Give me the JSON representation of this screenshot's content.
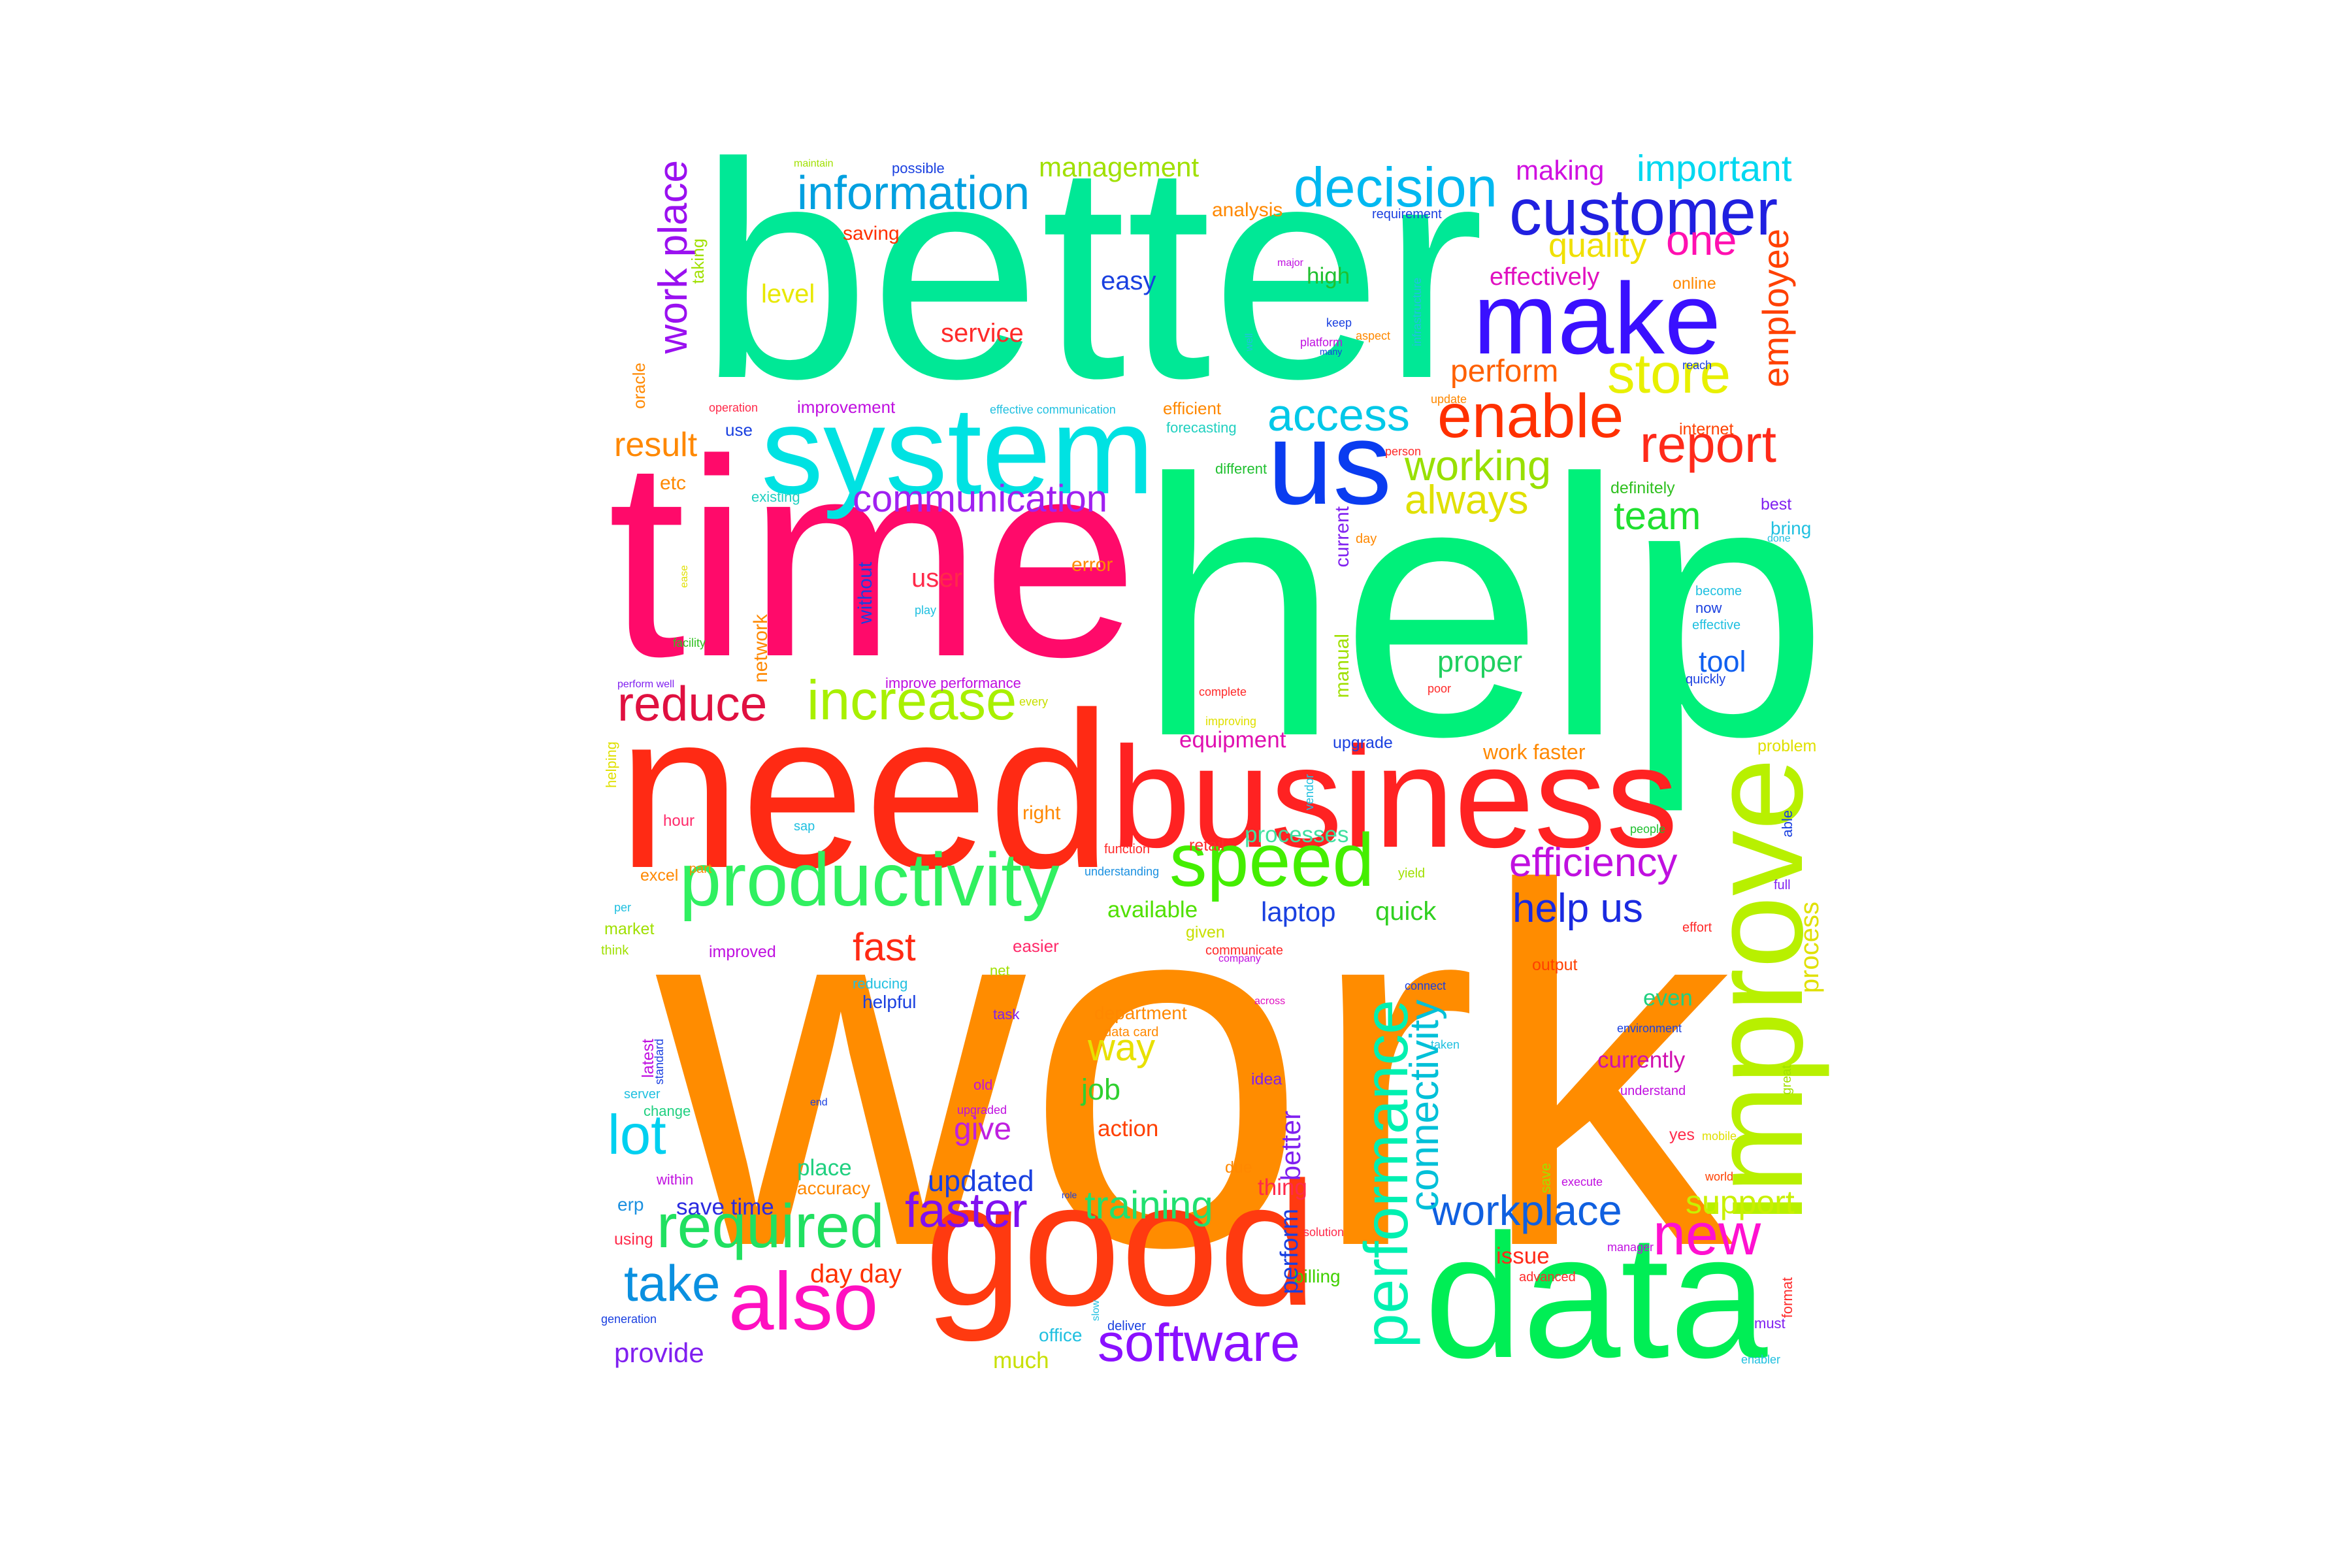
{
  "word_cloud": {
    "colors": {
      "work": "#ff8c00",
      "help": "#00f07a",
      "better": "#00e896",
      "time": "#ff0a6a",
      "need": "#ff2a14",
      "business": "#ff2222",
      "data": "#00ee55",
      "good": "#ff3a10",
      "improve": "#b8f000",
      "system": "#00e2e2",
      "make": "#3a10ff",
      "us": "#0a3cf0",
      "customer": "#2020e0",
      "productivity": "#30f060",
      "speed": "#44ee00",
      "also": "#ff10c0"
    },
    "words": [
      {
        "text": "work",
        "color": "#ff8c00"
      },
      {
        "text": "help",
        "color": "#00f07a"
      },
      {
        "text": "better",
        "color": "#00e896"
      },
      {
        "text": "time",
        "color": "#ff0a6a"
      },
      {
        "text": "need",
        "color": "#ff2a14"
      },
      {
        "text": "business",
        "color": "#ff2222"
      },
      {
        "text": "data",
        "color": "#00ee55"
      },
      {
        "text": "good",
        "color": "#ff3a10"
      },
      {
        "text": "improve",
        "color": "#b8f000"
      },
      {
        "text": "system",
        "color": "#00e2e2"
      },
      {
        "text": "make",
        "color": "#3a10ff"
      },
      {
        "text": "us",
        "color": "#0a3cf0"
      },
      {
        "text": "customer",
        "color": "#2020e0"
      },
      {
        "text": "productivity",
        "color": "#30f060"
      },
      {
        "text": "speed",
        "color": "#44ee00"
      },
      {
        "text": "also",
        "color": "#ff10c0"
      },
      {
        "text": "decision",
        "color": "#00b8f0"
      },
      {
        "text": "information",
        "color": "#00a0e0"
      },
      {
        "text": "enable",
        "color": "#ff3000"
      },
      {
        "text": "report",
        "color": "#ff2a1a"
      },
      {
        "text": "store",
        "color": "#e8f000"
      },
      {
        "text": "increase",
        "color": "#a8f000"
      },
      {
        "text": "reduce",
        "color": "#e01040"
      },
      {
        "text": "performance",
        "color": "#00f0b0"
      },
      {
        "text": "required",
        "color": "#20e060"
      },
      {
        "text": "new",
        "color": "#ff10d0"
      },
      {
        "text": "software",
        "color": "#8a10ff"
      },
      {
        "text": "communication",
        "color": "#a020f0"
      },
      {
        "text": "access",
        "color": "#00c8e8"
      },
      {
        "text": "working",
        "color": "#98e000"
      },
      {
        "text": "always",
        "color": "#e0e000"
      },
      {
        "text": "efficiency",
        "color": "#c010e0"
      },
      {
        "text": "help us",
        "color": "#1a2ae0"
      },
      {
        "text": "workplace",
        "color": "#1060e0"
      },
      {
        "text": "take",
        "color": "#0a90e0"
      },
      {
        "text": "lot",
        "color": "#00d0f0"
      },
      {
        "text": "faster",
        "color": "#8010f0"
      },
      {
        "text": "fast",
        "color": "#ff2a14"
      },
      {
        "text": "important",
        "color": "#00d8f0"
      },
      {
        "text": "one",
        "color": "#ff10b0"
      },
      {
        "text": "team",
        "color": "#20e030"
      },
      {
        "text": "work place",
        "color": "#9a10f0"
      },
      {
        "text": "employee",
        "color": "#ff4000"
      },
      {
        "text": "training",
        "color": "#20e070"
      },
      {
        "text": "connectivity",
        "color": "#00c0d8"
      },
      {
        "text": "support",
        "color": "#c8f000"
      },
      {
        "text": "management",
        "color": "#a0e000"
      },
      {
        "text": "making",
        "color": "#d010e0"
      },
      {
        "text": "quality",
        "color": "#f0e000"
      },
      {
        "text": "perform",
        "color": "#ff6000"
      },
      {
        "text": "effectively",
        "color": "#e010c0"
      },
      {
        "text": "result",
        "color": "#ff8800"
      },
      {
        "text": "proper",
        "color": "#20d060"
      },
      {
        "text": "tool",
        "color": "#1060f0"
      },
      {
        "text": "easy",
        "color": "#1a40e0"
      },
      {
        "text": "service",
        "color": "#ff2a2a"
      },
      {
        "text": "level",
        "color": "#e8e800"
      },
      {
        "text": "high",
        "color": "#20c030"
      },
      {
        "text": "user",
        "color": "#ff2a4a"
      },
      {
        "text": "equipment",
        "color": "#e010b0"
      },
      {
        "text": "processes",
        "color": "#40e0a0"
      },
      {
        "text": "available",
        "color": "#50e000"
      },
      {
        "text": "laptop",
        "color": "#1a40e0"
      },
      {
        "text": "quick",
        "color": "#30d020"
      },
      {
        "text": "way",
        "color": "#e8e000"
      },
      {
        "text": "job",
        "color": "#30d030"
      },
      {
        "text": "give",
        "color": "#c020e0"
      },
      {
        "text": "updated",
        "color": "#1a40e0"
      },
      {
        "text": "action",
        "color": "#ff4000"
      },
      {
        "text": "place",
        "color": "#20d080"
      },
      {
        "text": "accuracy",
        "color": "#ff8800"
      },
      {
        "text": "save time",
        "color": "#2a2ae0"
      },
      {
        "text": "day day",
        "color": "#ff3000"
      },
      {
        "text": "provide",
        "color": "#8020f0"
      },
      {
        "text": "much",
        "color": "#c8e000"
      },
      {
        "text": "office",
        "color": "#20c0e0"
      },
      {
        "text": "billing",
        "color": "#40d000"
      },
      {
        "text": "issue",
        "color": "#ff2a1a"
      },
      {
        "text": "currently",
        "color": "#d010b0"
      },
      {
        "text": "even",
        "color": "#20d080"
      },
      {
        "text": "process",
        "color": "#e0e000"
      },
      {
        "text": "right",
        "color": "#ff8800"
      },
      {
        "text": "current",
        "color": "#8020f0"
      },
      {
        "text": "manual",
        "color": "#a0e000"
      },
      {
        "text": "better",
        "color": "#8020f0"
      },
      {
        "text": "perform",
        "color": "#1a40e0"
      },
      {
        "text": "thing",
        "color": "#ff2a4a"
      },
      {
        "text": "error",
        "color": "#ff8800"
      },
      {
        "text": "without",
        "color": "#1a40e0"
      },
      {
        "text": "network",
        "color": "#ff8800"
      },
      {
        "text": "work faster",
        "color": "#ff8800"
      },
      {
        "text": "retail",
        "color": "#ff2a2a"
      },
      {
        "text": "definitely",
        "color": "#30c020"
      },
      {
        "text": "best",
        "color": "#8020f0"
      },
      {
        "text": "bring",
        "color": "#20c0e0"
      },
      {
        "text": "hour",
        "color": "#ff2a6a"
      },
      {
        "text": "saving",
        "color": "#ff3000"
      },
      {
        "text": "analysis",
        "color": "#ff8800"
      },
      {
        "text": "efficient",
        "color": "#ff8800"
      },
      {
        "text": "forecasting",
        "color": "#20d0c0"
      },
      {
        "text": "improvement",
        "color": "#c010e0"
      },
      {
        "text": "etc",
        "color": "#ff8800"
      },
      {
        "text": "use",
        "color": "#1a40e0"
      },
      {
        "text": "existing",
        "color": "#20d0c0"
      },
      {
        "text": "different",
        "color": "#20c030"
      },
      {
        "text": "online",
        "color": "#ff8800"
      },
      {
        "text": "internet",
        "color": "#ff4000"
      },
      {
        "text": "quickly",
        "color": "#1a40e0"
      },
      {
        "text": "now",
        "color": "#1a40e0"
      },
      {
        "text": "become",
        "color": "#20c0e0"
      },
      {
        "text": "effective",
        "color": "#20c0e0"
      },
      {
        "text": "problem",
        "color": "#e0e000"
      },
      {
        "text": "able",
        "color": "#1a40e0"
      },
      {
        "text": "full",
        "color": "#8020f0"
      },
      {
        "text": "effort",
        "color": "#ff2a2a"
      },
      {
        "text": "output",
        "color": "#ff4000"
      },
      {
        "text": "connect",
        "color": "#1a40e0"
      },
      {
        "text": "environment",
        "color": "#1a40e0"
      },
      {
        "text": "understand",
        "color": "#c010e0"
      },
      {
        "text": "great",
        "color": "#a0e000"
      },
      {
        "text": "mobile",
        "color": "#e0e000"
      },
      {
        "text": "yes",
        "color": "#ff2a4a"
      },
      {
        "text": "world",
        "color": "#ff4000"
      },
      {
        "text": "save",
        "color": "#a0e000"
      },
      {
        "text": "execute",
        "color": "#c010e0"
      },
      {
        "text": "manager",
        "color": "#c010e0"
      },
      {
        "text": "advanced",
        "color": "#ff2a2a"
      },
      {
        "text": "must",
        "color": "#8020f0"
      },
      {
        "text": "format",
        "color": "#ff2a2a"
      },
      {
        "text": "enabler",
        "color": "#20c0e0"
      },
      {
        "text": "solution",
        "color": "#ff2a4a"
      },
      {
        "text": "deliver",
        "color": "#1a40e0"
      },
      {
        "text": "slow",
        "color": "#20c0e0"
      },
      {
        "text": "role",
        "color": "#1a40e0"
      },
      {
        "text": "due",
        "color": "#ff8800"
      },
      {
        "text": "idea",
        "color": "#8020f0"
      },
      {
        "text": "taken",
        "color": "#20c0e0"
      },
      {
        "text": "across",
        "color": "#e010c0"
      },
      {
        "text": "department",
        "color": "#ff8800"
      },
      {
        "text": "data card",
        "color": "#ff8800"
      },
      {
        "text": "task",
        "color": "#8020f0"
      },
      {
        "text": "net",
        "color": "#a0e000"
      },
      {
        "text": "easier",
        "color": "#ff2a6a"
      },
      {
        "text": "given",
        "color": "#c8e000"
      },
      {
        "text": "communicate",
        "color": "#ff2a2a"
      },
      {
        "text": "company",
        "color": "#c010e0"
      },
      {
        "text": "helpful",
        "color": "#1a40e0"
      },
      {
        "text": "reducing",
        "color": "#20c0e0"
      },
      {
        "text": "improved",
        "color": "#c010e0"
      },
      {
        "text": "market",
        "color": "#a0e000"
      },
      {
        "text": "think",
        "color": "#a0e000"
      },
      {
        "text": "per",
        "color": "#20c0e0"
      },
      {
        "text": "excel",
        "color": "#ff8800"
      },
      {
        "text": "part",
        "color": "#ff8800"
      },
      {
        "text": "sap",
        "color": "#20c0e0"
      },
      {
        "text": "function",
        "color": "#ff2a2a"
      },
      {
        "text": "understanding",
        "color": "#1a90e0"
      },
      {
        "text": "yield",
        "color": "#a0e000"
      },
      {
        "text": "people",
        "color": "#20c030"
      },
      {
        "text": "upgrade",
        "color": "#1a40e0"
      },
      {
        "text": "vendor",
        "color": "#20c0e0"
      },
      {
        "text": "poor",
        "color": "#ff2a2a"
      },
      {
        "text": "complete",
        "color": "#ff2a2a"
      },
      {
        "text": "improving",
        "color": "#e0e000"
      },
      {
        "text": "every",
        "color": "#c8e000"
      },
      {
        "text": "improve performance",
        "color": "#c010e0"
      },
      {
        "text": "perform well",
        "color": "#8020f0"
      },
      {
        "text": "facility",
        "color": "#30c020"
      },
      {
        "text": "play",
        "color": "#20c0e0"
      },
      {
        "text": "day",
        "color": "#ff8800"
      },
      {
        "text": "done",
        "color": "#20c0e0"
      },
      {
        "text": "person",
        "color": "#ff2a2a"
      },
      {
        "text": "update",
        "color": "#ff8800"
      },
      {
        "text": "reach",
        "color": "#1a40e0"
      },
      {
        "text": "effective communication",
        "color": "#20c0e0"
      },
      {
        "text": "operation",
        "color": "#ff2a4a"
      },
      {
        "text": "oracle",
        "color": "#ff8800"
      },
      {
        "text": "taking",
        "color": "#a0e000"
      },
      {
        "text": "maintain",
        "color": "#a0e000"
      },
      {
        "text": "possible",
        "color": "#1a40e0"
      },
      {
        "text": "requirement",
        "color": "#1a40e0"
      },
      {
        "text": "major",
        "color": "#c010e0"
      },
      {
        "text": "keep",
        "color": "#1a40e0"
      },
      {
        "text": "platform",
        "color": "#c010e0"
      },
      {
        "text": "aspect",
        "color": "#ff8800"
      },
      {
        "text": "many",
        "color": "#1a40e0"
      },
      {
        "text": "well",
        "color": "#20c0e0"
      },
      {
        "text": "infrastructure",
        "color": "#20c0e0"
      },
      {
        "text": "ease",
        "color": "#e0e000"
      },
      {
        "text": "helping",
        "color": "#e0e000"
      },
      {
        "text": "latest",
        "color": "#c010e0"
      },
      {
        "text": "standard",
        "color": "#1a40e0"
      },
      {
        "text": "server",
        "color": "#20c0e0"
      },
      {
        "text": "change",
        "color": "#20d080"
      },
      {
        "text": "within",
        "color": "#c010e0"
      },
      {
        "text": "erp",
        "color": "#1a90e0"
      },
      {
        "text": "using",
        "color": "#ff2a4a"
      },
      {
        "text": "generation",
        "color": "#1a40e0"
      },
      {
        "text": "end",
        "color": "#1a40e0"
      },
      {
        "text": "old",
        "color": "#c010e0"
      },
      {
        "text": "upgraded",
        "color": "#c010e0"
      }
    ]
  }
}
